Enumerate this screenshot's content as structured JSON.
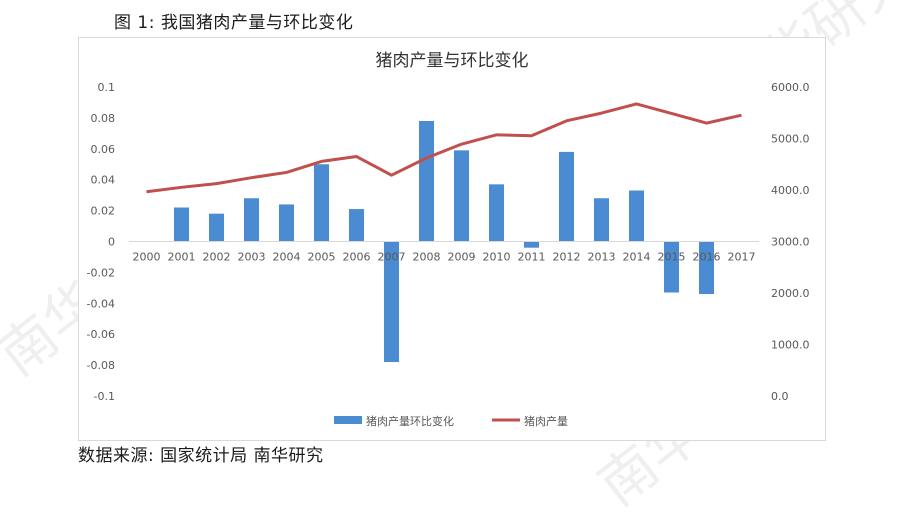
{
  "figure_caption": "图 1:  我国猪肉产量与环比变化",
  "source_note": "数据来源:  国家统计局    南华研究",
  "watermark_text": "南华研究",
  "colors": {
    "bar": "#4a8bd2",
    "line": "#c0504d",
    "axis_text": "#595959",
    "frame": "#d9d9d9"
  },
  "chart_data": {
    "type": "bar+line",
    "title": "猪肉产量与环比变化",
    "categories": [
      "2000",
      "2001",
      "2002",
      "2003",
      "2004",
      "2005",
      "2006",
      "2007",
      "2008",
      "2009",
      "2010",
      "2011",
      "2012",
      "2013",
      "2014",
      "2015",
      "2016",
      "2017"
    ],
    "series": [
      {
        "name": "猪肉产量环比变化",
        "type": "bar",
        "axis": "left",
        "values": [
          null,
          0.022,
          0.018,
          0.028,
          0.024,
          0.05,
          0.021,
          -0.078,
          0.078,
          0.059,
          0.037,
          -0.004,
          0.058,
          0.028,
          0.033,
          -0.033,
          -0.034,
          null
        ]
      },
      {
        "name": "猪肉产量",
        "type": "line",
        "axis": "right",
        "values": [
          3966,
          4052,
          4123,
          4239,
          4341,
          4555,
          4650,
          4288,
          4621,
          4890,
          5071,
          5053,
          5343,
          5493,
          5671,
          5487,
          5299,
          5452
        ]
      }
    ],
    "left_axis": {
      "ylim": [
        -0.1,
        0.1
      ],
      "ticks": [
        0.1,
        0.08,
        0.06,
        0.04,
        0.02,
        0,
        -0.02,
        -0.04,
        -0.06,
        -0.08,
        -0.1
      ],
      "tick_labels": [
        "0.1",
        "0.08",
        "0.06",
        "0.04",
        "0.02",
        "0",
        "-0.02",
        "-0.04",
        "-0.06",
        "-0.08",
        "-0.1"
      ]
    },
    "right_axis": {
      "ylim": [
        0,
        6000
      ],
      "ticks": [
        6000,
        5000,
        4000,
        3000,
        2000,
        1000,
        0
      ],
      "tick_labels": [
        "6000.0",
        "5000.0",
        "4000.0",
        "3000.0",
        "2000.0",
        "1000.0",
        "0.0"
      ]
    },
    "grid": false,
    "legend_position": "bottom"
  }
}
